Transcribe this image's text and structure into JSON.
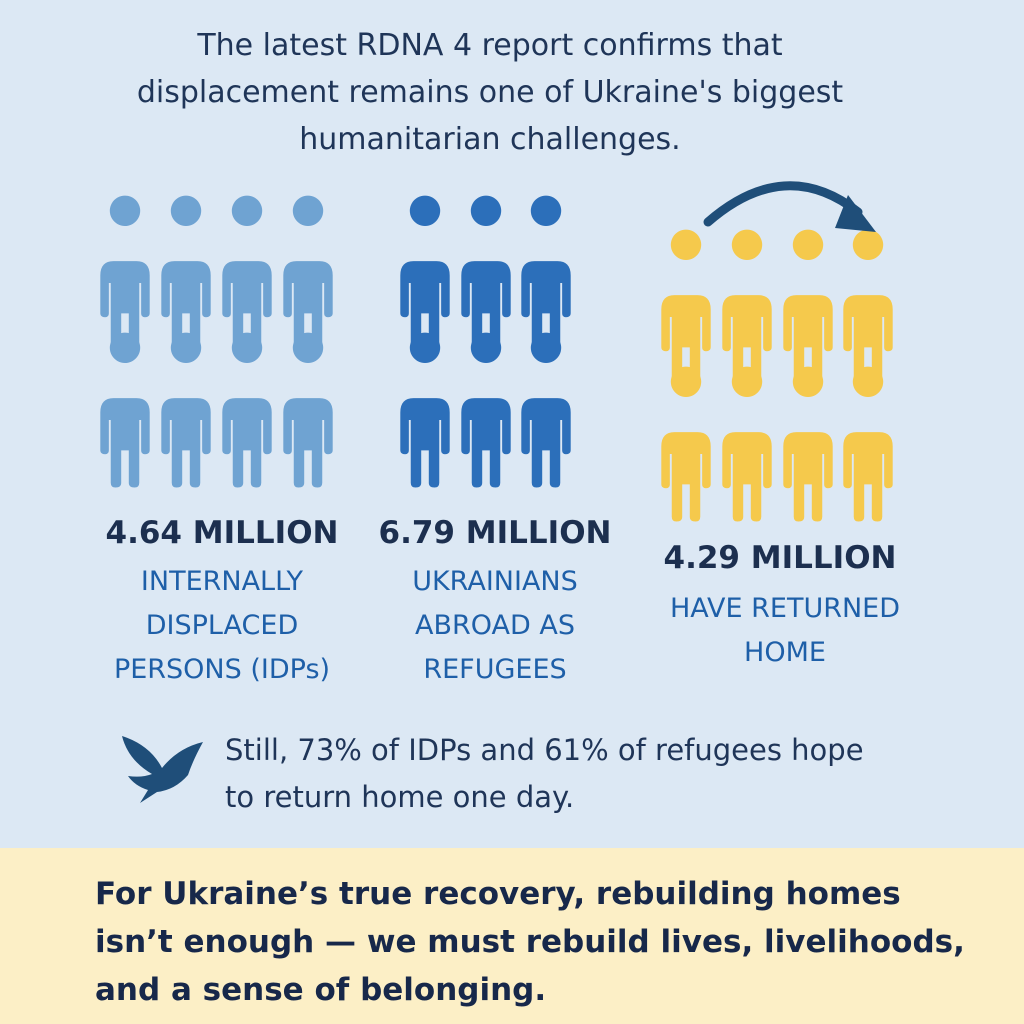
{
  "header": {
    "title": "The latest RDNA 4 report confirms that displacement remains one of Ukraine's biggest humanitarian challenges."
  },
  "stats": [
    {
      "figure": "4.64 MILLION",
      "label": "INTERNALLY DISPLACED PERSONS (IDPs)"
    },
    {
      "figure": "6.79 MILLION",
      "label": "UKRAINIANS ABROAD AS REFUGEES"
    },
    {
      "figure": "4.29 MILLION",
      "label": "HAVE RETURNED HOME"
    }
  ],
  "note": "Still, 73% of IDPs and 61% of refugees hope to return home one day.",
  "footer": "For Ukraine’s true recovery, rebuilding homes isn’t enough — we must rebuild lives, livelihoods, and a sense of belonging."
}
